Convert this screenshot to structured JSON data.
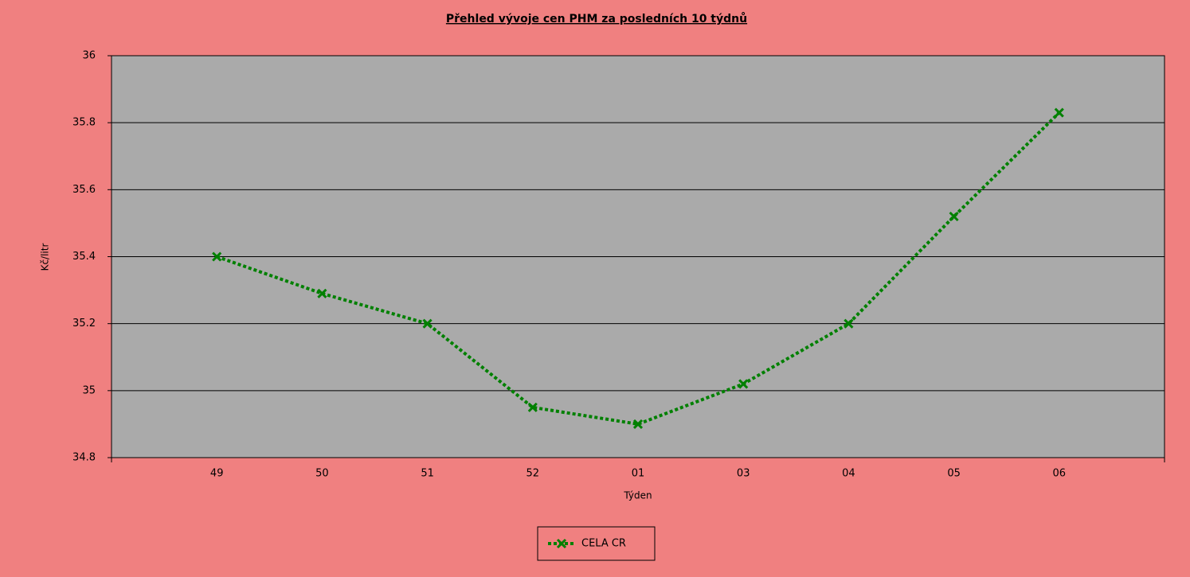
{
  "chart_data": {
    "type": "line",
    "title": "Přehled vývoje cen PHM za posledních 10 týdnů",
    "x_label": "Týden",
    "y_label": "Kč/litr",
    "categories": [
      "49",
      "50",
      "51",
      "52",
      "01",
      "03",
      "04",
      "05",
      "06"
    ],
    "series": [
      {
        "name": "CELA CR",
        "color": "#008000",
        "values": [
          35.4,
          35.29,
          35.2,
          34.95,
          34.9,
          35.02,
          35.2,
          35.52,
          35.83
        ]
      }
    ],
    "ylim": [
      34.8,
      36
    ],
    "yticks": [
      34.8,
      35,
      35.2,
      35.4,
      35.6,
      35.8,
      36
    ],
    "grid": true,
    "legend": "bottom"
  }
}
